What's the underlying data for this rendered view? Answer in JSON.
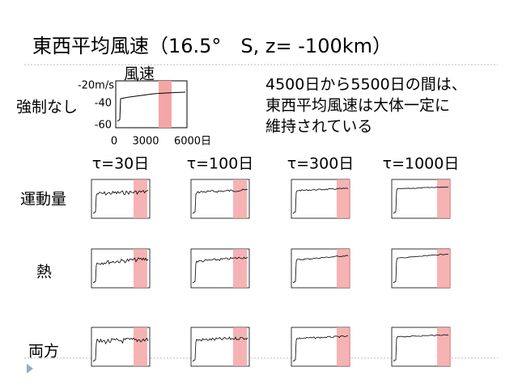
{
  "title": "東西平均風速（16.5°　S, z= -100km）",
  "reference": {
    "row_label": "強制なし",
    "chart_title": "風速",
    "y_tick_labels": [
      "-20m/s",
      "-40",
      "-60"
    ],
    "x_tick_labels": [
      "0",
      "3000",
      "6000日"
    ]
  },
  "note": [
    "4500日から5500日の間は、",
    "東西平均風速は大体一定に",
    "維持されている"
  ],
  "columns": [
    "τ=30日",
    "τ=100日",
    "τ=300日",
    "τ=1000日"
  ],
  "rows": [
    "運動量",
    "熱",
    "両方"
  ]
}
